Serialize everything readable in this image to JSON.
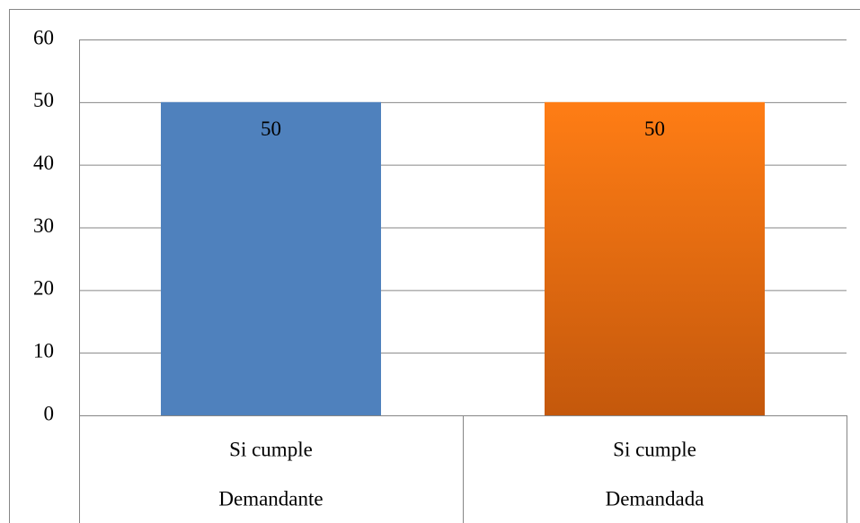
{
  "chart_data": {
    "type": "bar",
    "categories": [
      "Si cumple",
      "Si cumple"
    ],
    "groups": [
      "Demandante",
      "Demandada"
    ],
    "values": [
      50,
      50
    ],
    "colors": [
      [
        "#4f81bd",
        "#4f81bd"
      ],
      [
        "#ff7d15",
        "#c4580c"
      ]
    ],
    "ylim": [
      0,
      60
    ],
    "yticks": [
      0,
      10,
      20,
      30,
      40,
      50,
      60
    ],
    "grid": true
  }
}
